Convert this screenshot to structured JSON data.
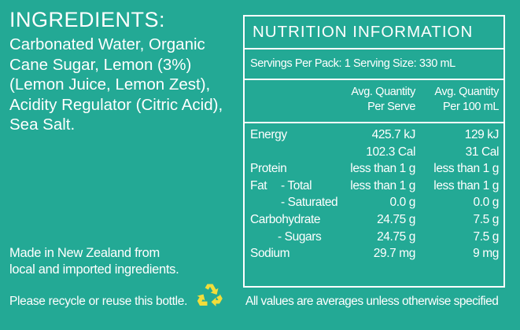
{
  "ingredients": {
    "title": "INGREDIENTS:",
    "lines": [
      "Carbonated Water, Organic",
      "Cane Sugar, Lemon (3%)",
      "(Lemon Juice, Lemon Zest),",
      "Acidity Regulator (Citric Acid),",
      "Sea Salt."
    ]
  },
  "origin": {
    "lines": [
      "Made in New Zealand from",
      "local and imported ingredients."
    ]
  },
  "recycle": {
    "text": "Please recycle or reuse this bottle.",
    "icon": "recycle-icon",
    "icon_color": "#f2dd3a"
  },
  "nutrition": {
    "title": "NUTRITION INFORMATION",
    "servings": "Servings Per Pack: 1  Serving Size: 330 mL",
    "col_serve": [
      "Avg. Quantity",
      "Per Serve"
    ],
    "col_100": [
      "Avg. Quantity",
      "Per 100 mL"
    ],
    "rows": [
      {
        "label": "Energy",
        "serve": "425.7 kJ",
        "per100": "129 kJ"
      },
      {
        "label": "",
        "serve": "102.3 Cal",
        "per100": "31 Cal"
      },
      {
        "label": "Protein",
        "serve": "less than 1 g",
        "per100": "less than 1 g"
      },
      {
        "label": "Fat",
        "sublabel": "- Total",
        "serve": "less than 1 g",
        "per100": "less than 1 g"
      },
      {
        "label": "",
        "sublabel": "- Saturated",
        "serve": "0.0 g",
        "per100": "0.0 g"
      },
      {
        "label": "Carbohydrate",
        "serve": "24.75 g",
        "per100": "7.5 g"
      },
      {
        "label": "",
        "sublabel": "- Sugars",
        "serve": "24.75 g",
        "per100": "7.5 g"
      },
      {
        "label": "Sodium",
        "serve": "29.7 mg",
        "per100": "9 mg"
      }
    ],
    "footnote": "All values are averages unless otherwise specified"
  },
  "colors": {
    "background": "#23a995",
    "text": "#ffffff"
  }
}
